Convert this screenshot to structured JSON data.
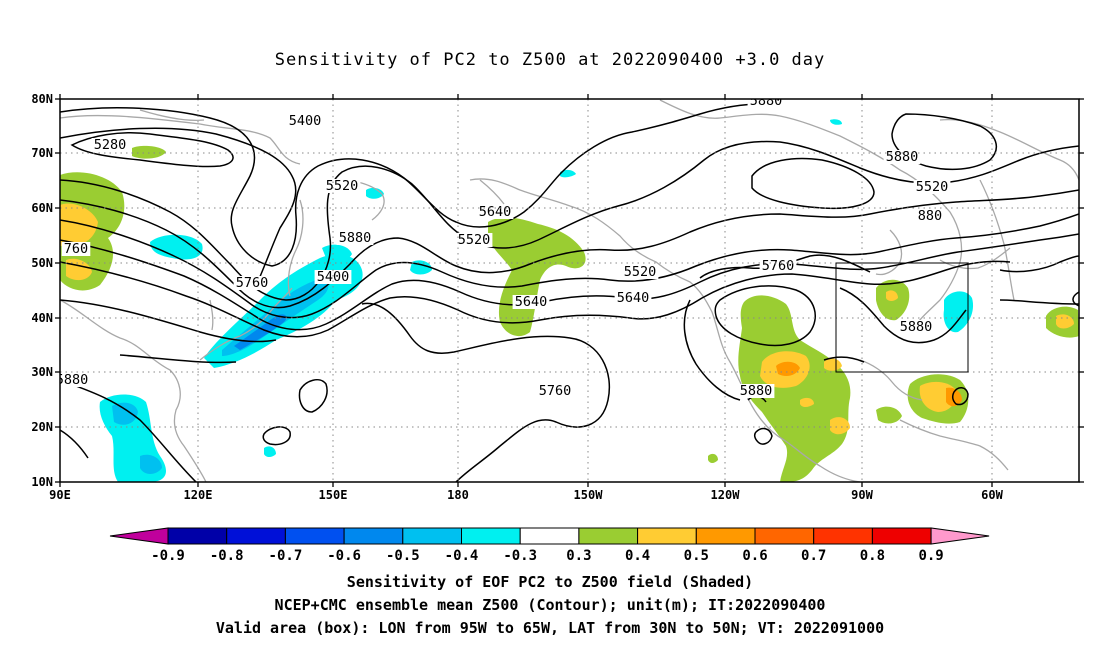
{
  "title": "Sensitivity of PC2 to Z500 at 2022090400 +3.0 day",
  "lat_ticks": [
    "80N",
    "70N",
    "60N",
    "50N",
    "40N",
    "30N",
    "20N",
    "10N"
  ],
  "lon_ticks": [
    "90E",
    "120E",
    "150E",
    "180",
    "150W",
    "120W",
    "90W",
    "60W"
  ],
  "contour_labels": [
    "5280",
    "5400",
    "5520",
    "5640",
    "5760",
    "5880",
    "5400",
    "5520",
    "5640",
    "5760",
    "5880",
    "5880",
    "5520",
    "5520",
    "5640",
    "5760",
    "5880",
    "5880",
    "5880",
    "880",
    "760"
  ],
  "colorbar": {
    "labels": [
      "-0.9",
      "-0.8",
      "-0.7",
      "-0.6",
      "-0.5",
      "-0.4",
      "-0.3",
      "0.3",
      "0.4",
      "0.5",
      "0.6",
      "0.7",
      "0.8",
      "0.9"
    ],
    "colors": [
      "#c0009c",
      "#0000a8",
      "#0010d8",
      "#0050f0",
      "#0088ee",
      "#00c0f0",
      "#00f0f0",
      "#ffffff",
      "#9acd32",
      "#ffcc33",
      "#ff9900",
      "#ff6600",
      "#ff3300",
      "#ee0000",
      "#ff99cc"
    ]
  },
  "footer": {
    "line1": "Sensitivity of EOF PC2 to Z500 field (Shaded)",
    "line2": "NCEP+CMC ensemble mean Z500 (Contour); unit(m); IT:2022090400",
    "line3": "Valid area (box): LON from 95W to 65W, LAT from 30N to 50N; VT: 2022091000"
  },
  "shading_colors": {
    "green": "#9acd32",
    "yellow": "#ffcc33",
    "orange": "#ff9900",
    "cyan": "#00f0f0",
    "lightblue": "#00c0f0",
    "blue": "#0088ee"
  }
}
